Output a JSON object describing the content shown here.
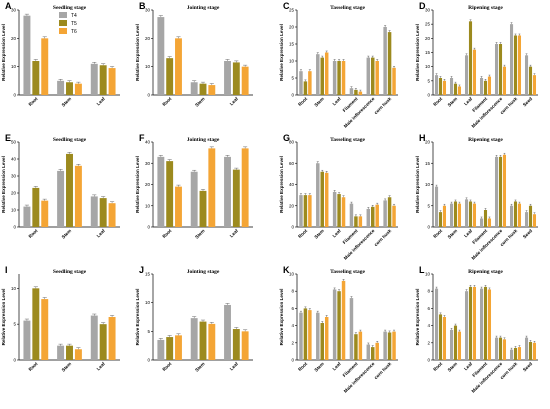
{
  "colors": {
    "T4": "#a6a6a6",
    "T5": "#9c8a1e",
    "T6": "#f4a535"
  },
  "chart_data": [
    {
      "panel": "A",
      "type": "bar",
      "title": "Seedling stage",
      "ylabel": "Relative Expression Level",
      "ylim": [
        0,
        30
      ],
      "yticks": [
        0,
        10,
        20,
        30
      ],
      "categories": [
        "Root",
        "Stem",
        "Leaf"
      ],
      "series": [
        {
          "name": "T4",
          "values": [
            28,
            5,
            11
          ]
        },
        {
          "name": "T5",
          "values": [
            12,
            4.5,
            10.5
          ]
        },
        {
          "name": "T6",
          "values": [
            20,
            4,
            9.5
          ]
        }
      ],
      "legend": "top-right"
    },
    {
      "panel": "B",
      "type": "bar",
      "title": "Jointing stage",
      "ylabel": "Relative Expression Level",
      "ylim": [
        0,
        30
      ],
      "yticks": [
        0,
        10,
        20,
        30
      ],
      "categories": [
        "Root",
        "Stem",
        "Leaf"
      ],
      "series": [
        {
          "name": "T4",
          "values": [
            27.5,
            4.5,
            12
          ]
        },
        {
          "name": "T5",
          "values": [
            13,
            4,
            11.5
          ]
        },
        {
          "name": "T6",
          "values": [
            20,
            3.5,
            10
          ]
        }
      ]
    },
    {
      "panel": "C",
      "type": "bar",
      "title": "Tasseling stage",
      "ylabel": "Relative Expression Level",
      "ylim": [
        0,
        25
      ],
      "yticks": [
        0,
        5,
        10,
        15,
        20,
        25
      ],
      "categories": [
        "Root",
        "Stem",
        "Leaf",
        "Filament",
        "Male inflorescence",
        "corn husk"
      ],
      "series": [
        {
          "name": "T4",
          "values": [
            7,
            12,
            10,
            2,
            11,
            20
          ]
        },
        {
          "name": "T5",
          "values": [
            4,
            11,
            10,
            1.5,
            11,
            18.5
          ]
        },
        {
          "name": "T6",
          "values": [
            7,
            12.5,
            10,
            1,
            10,
            8
          ]
        }
      ]
    },
    {
      "panel": "D",
      "type": "bar",
      "title": "Ripening stage",
      "ylabel": "Relative Expression Level",
      "ylim": [
        0,
        30
      ],
      "yticks": [
        0,
        5,
        10,
        15,
        20,
        25,
        30
      ],
      "categories": [
        "Root",
        "Stem",
        "Leaf",
        "Filament",
        "Male inflorescence",
        "corn husk",
        "Seed"
      ],
      "series": [
        {
          "name": "T4",
          "values": [
            7,
            6,
            14,
            6,
            18,
            25,
            14
          ]
        },
        {
          "name": "T5",
          "values": [
            6,
            4,
            26,
            5,
            18,
            21,
            10
          ]
        },
        {
          "name": "T6",
          "values": [
            5,
            3,
            16,
            6.5,
            10,
            21,
            7
          ]
        }
      ]
    },
    {
      "panel": "E",
      "type": "bar",
      "title": "Seedling stage",
      "ylabel": "Relative Expression Level",
      "ylim": [
        0,
        50
      ],
      "yticks": [
        0,
        10,
        20,
        30,
        40,
        50
      ],
      "categories": [
        "Root",
        "Stem",
        "Leaf"
      ],
      "series": [
        {
          "name": "T4",
          "values": [
            12,
            33,
            18
          ]
        },
        {
          "name": "T5",
          "values": [
            23,
            43,
            17
          ]
        },
        {
          "name": "T6",
          "values": [
            15.5,
            36,
            14
          ]
        }
      ]
    },
    {
      "panel": "F",
      "type": "bar",
      "title": "Jointing stage",
      "ylabel": "Relative Expression Level",
      "ylim": [
        0,
        40
      ],
      "yticks": [
        0,
        10,
        20,
        30,
        40
      ],
      "categories": [
        "Root",
        "Stem",
        "Leaf"
      ],
      "series": [
        {
          "name": "T4",
          "values": [
            33,
            26,
            33
          ]
        },
        {
          "name": "T5",
          "values": [
            31,
            17,
            27
          ]
        },
        {
          "name": "T6",
          "values": [
            19,
            37,
            37
          ]
        }
      ]
    },
    {
      "panel": "G",
      "type": "bar",
      "title": "Tasseling stage",
      "ylabel": "Relative Expression Level",
      "ylim": [
        0,
        80
      ],
      "yticks": [
        0,
        20,
        40,
        60,
        80
      ],
      "categories": [
        "Root",
        "Stem",
        "Leaf",
        "Filament",
        "Male inflorescence",
        "corn husk"
      ],
      "series": [
        {
          "name": "T4",
          "values": [
            30,
            60,
            33,
            22,
            17,
            25
          ]
        },
        {
          "name": "T5",
          "values": [
            30,
            52,
            31,
            10,
            19,
            28
          ]
        },
        {
          "name": "T6",
          "values": [
            30,
            51,
            28,
            10,
            21,
            20
          ]
        }
      ]
    },
    {
      "panel": "H",
      "type": "bar",
      "title": "Ripening stage",
      "ylabel": "Relative Expression Level",
      "ylim": [
        0,
        20
      ],
      "yticks": [
        0,
        5,
        10,
        15,
        20
      ],
      "categories": [
        "Root",
        "Stem",
        "Leaf",
        "Filament",
        "Male inflorescence",
        "corn husk",
        "Seed"
      ],
      "series": [
        {
          "name": "T4",
          "values": [
            9.5,
            5.5,
            6.5,
            2,
            16.5,
            5,
            3.5
          ]
        },
        {
          "name": "T5",
          "values": [
            3.5,
            6,
            6,
            4,
            16.5,
            6,
            5
          ]
        },
        {
          "name": "T6",
          "values": [
            5,
            5.5,
            5.5,
            2,
            17,
            5.5,
            3
          ]
        }
      ]
    },
    {
      "panel": "I",
      "type": "bar",
      "title": "Seedling stage",
      "ylabel": "Relative Expression Level",
      "ylim": [
        0,
        12
      ],
      "yticks": [
        0,
        5,
        10
      ],
      "categories": [
        "Root",
        "Stem",
        "Leaf"
      ],
      "series": [
        {
          "name": "T4",
          "values": [
            5.5,
            2,
            6.2
          ]
        },
        {
          "name": "T5",
          "values": [
            10,
            2,
            5
          ]
        },
        {
          "name": "T6",
          "values": [
            8.5,
            1.5,
            6
          ]
        }
      ]
    },
    {
      "panel": "J",
      "type": "bar",
      "title": "Jointing stage",
      "ylabel": "Relative Expression Level",
      "ylim": [
        0,
        15
      ],
      "yticks": [
        0,
        5,
        10,
        15
      ],
      "categories": [
        "Root",
        "Stem",
        "Leaf"
      ],
      "series": [
        {
          "name": "T4",
          "values": [
            3.5,
            7.3,
            9.6
          ]
        },
        {
          "name": "T5",
          "values": [
            4,
            6.7,
            5.4
          ]
        },
        {
          "name": "T6",
          "values": [
            4.3,
            6.3,
            5
          ]
        }
      ]
    },
    {
      "panel": "K",
      "type": "bar",
      "title": "Tasseling stage",
      "ylabel": "Relative Expression Level",
      "ylim": [
        0,
        10
      ],
      "yticks": [
        0,
        2,
        4,
        6,
        8,
        10
      ],
      "categories": [
        "Root",
        "Stem",
        "Leaf",
        "Filament",
        "Male inflorescence",
        "corn husk"
      ],
      "series": [
        {
          "name": "T4",
          "values": [
            5.5,
            5.5,
            8.2,
            7.2,
            1.8,
            3.3
          ]
        },
        {
          "name": "T5",
          "values": [
            6,
            4.3,
            8,
            3,
            1.5,
            3.2
          ]
        },
        {
          "name": "T6",
          "values": [
            5.8,
            5,
            9.2,
            3.3,
            2,
            3.3
          ]
        }
      ]
    },
    {
      "panel": "L",
      "type": "bar",
      "title": "Ripening stage",
      "ylabel": "Relative Expression Level",
      "ylim": [
        0,
        10
      ],
      "yticks": [
        0,
        2,
        4,
        6,
        8,
        10
      ],
      "categories": [
        "Root",
        "Stem",
        "Leaf",
        "Filament",
        "Male inflorescence",
        "corn husk",
        "Seed"
      ],
      "series": [
        {
          "name": "T4",
          "values": [
            8.3,
            3.5,
            8,
            8.3,
            2.6,
            1.2,
            2.6
          ]
        },
        {
          "name": "T5",
          "values": [
            5.3,
            4,
            8.5,
            8.5,
            2.6,
            1.4,
            2.1
          ]
        },
        {
          "name": "T6",
          "values": [
            5,
            3.3,
            8.5,
            8.2,
            2.4,
            1.5,
            2
          ]
        }
      ]
    }
  ]
}
